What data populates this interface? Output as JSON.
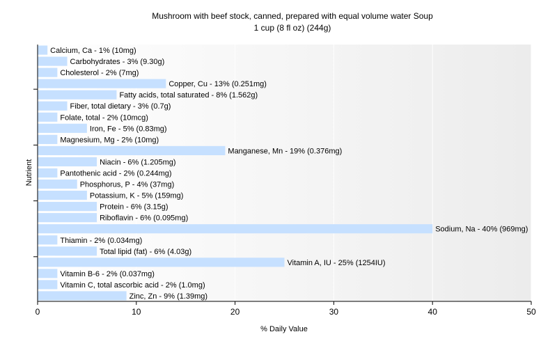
{
  "chart_data": {
    "type": "bar",
    "orientation": "horizontal",
    "title": "Mushroom with beef stock, canned, prepared with equal volume water Soup",
    "subtitle": "1 cup (8 fl oz) (244g)",
    "xlabel": "% Daily Value",
    "ylabel": "Nutrient",
    "xlim": [
      0,
      50
    ],
    "xticks": [
      0,
      10,
      20,
      30,
      40,
      50
    ],
    "grid": true,
    "bar_color": "#c6e0ff",
    "categories": [
      "Calcium, Ca",
      "Carbohydrates",
      "Cholesterol",
      "Copper, Cu",
      "Fatty acids, total saturated",
      "Fiber, total dietary",
      "Folate, total",
      "Iron, Fe",
      "Magnesium, Mg",
      "Manganese, Mn",
      "Niacin",
      "Pantothenic acid",
      "Phosphorus, P",
      "Potassium, K",
      "Protein",
      "Riboflavin",
      "Sodium, Na",
      "Thiamin",
      "Total lipid (fat)",
      "Vitamin A, IU",
      "Vitamin B-6",
      "Vitamin C, total ascorbic acid",
      "Zinc, Zn"
    ],
    "values": [
      1,
      3,
      2,
      13,
      8,
      3,
      2,
      5,
      2,
      19,
      6,
      2,
      4,
      5,
      6,
      6,
      40,
      2,
      6,
      25,
      2,
      2,
      9
    ],
    "labels": [
      "Calcium, Ca - 1% (10mg)",
      "Carbohydrates - 3% (9.30g)",
      "Cholesterol - 2% (7mg)",
      "Copper, Cu - 13% (0.251mg)",
      "Fatty acids, total saturated - 8% (1.562g)",
      "Fiber, total dietary - 3% (0.7g)",
      "Folate, total - 2% (10mcg)",
      "Iron, Fe - 5% (0.83mg)",
      "Magnesium, Mg - 2% (10mg)",
      "Manganese, Mn - 19% (0.376mg)",
      "Niacin - 6% (1.205mg)",
      "Pantothenic acid - 2% (0.244mg)",
      "Phosphorus, P - 4% (37mg)",
      "Potassium, K - 5% (159mg)",
      "Protein - 6% (3.15g)",
      "Riboflavin - 6% (0.095mg)",
      "Sodium, Na - 40% (969mg)",
      "Thiamin - 2% (0.034mg)",
      "Total lipid (fat) - 6% (4.03g)",
      "Vitamin A, IU - 25% (1254IU)",
      "Vitamin B-6 - 2% (0.037mg)",
      "Vitamin C, total ascorbic acid - 2% (1.0mg)",
      "Zinc, Zn - 9% (1.39mg)"
    ]
  }
}
